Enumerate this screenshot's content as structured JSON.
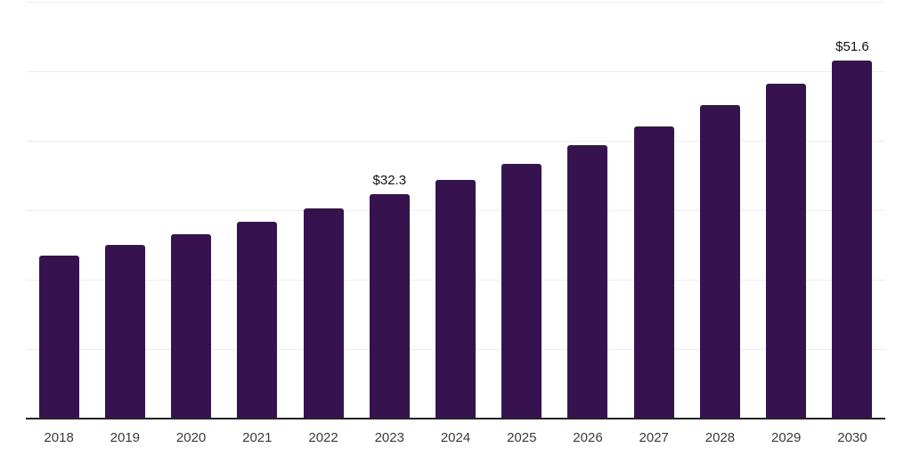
{
  "chart_data": {
    "type": "bar",
    "title": "",
    "xlabel": "",
    "ylabel": "",
    "categories": [
      "2018",
      "2019",
      "2020",
      "2021",
      "2022",
      "2023",
      "2024",
      "2025",
      "2026",
      "2027",
      "2028",
      "2029",
      "2030"
    ],
    "values": [
      23.4,
      25.0,
      26.5,
      28.3,
      30.3,
      32.3,
      34.4,
      36.7,
      39.3,
      42.0,
      45.1,
      48.2,
      51.6
    ],
    "data_labels": [
      "",
      "",
      "",
      "",
      "",
      "$32.3",
      "",
      "",
      "",
      "",
      "",
      "",
      "$51.6"
    ],
    "ylim": [
      0,
      60
    ],
    "grid_step": 10,
    "grid": "horizontal gridlines, no y-axis tick labels, no legend",
    "colors": {
      "bar": "#36134e",
      "axis_line": "#222222",
      "gridline": "#ececec",
      "data_label": "#111111",
      "tick_label": "#3a3a3a",
      "background": "#ffffff"
    }
  }
}
